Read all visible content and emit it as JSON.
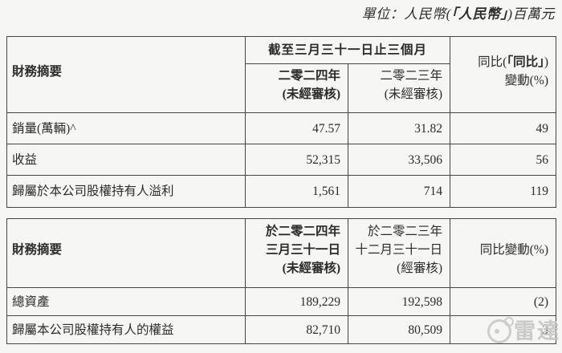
{
  "page": {
    "unit_note": {
      "prefix": "單位：人民幣(",
      "bold": "「人民幣」",
      "suffix": ")百萬元"
    }
  },
  "colors": {
    "background": "#f6f6f4",
    "border": "#454545",
    "text": "#2b2b2b",
    "watermark": "#c6c6c5"
  },
  "table1": {
    "header": {
      "label": "財務摘要",
      "period_span": "截至三月三十一日止三個月",
      "col_2024": {
        "line1": "二零二四年",
        "line2": "(未經審核)"
      },
      "col_2023": {
        "line1": "二零二三年",
        "line2": "(未經審核)"
      },
      "col_yoy": {
        "line1_prefix": "同比(",
        "line1_bold": "「同比」",
        "line1_suffix": ")",
        "line2": "變動(%)"
      }
    },
    "rows": [
      {
        "label": "銷量(萬輛)^",
        "y2024": "47.57",
        "y2023": "31.82",
        "yoy": "49"
      },
      {
        "label": "收益",
        "y2024": "52,315",
        "y2023": "33,506",
        "yoy": "56"
      },
      {
        "label": "歸屬於本公司股權持有人溢利",
        "y2024": "1,561",
        "y2023": "714",
        "yoy": "119"
      }
    ]
  },
  "table2": {
    "header": {
      "label": "財務摘要",
      "col_2024": {
        "line1": "於二零二四年",
        "line2": "三月三十一日",
        "line3": "(未經審核)"
      },
      "col_2023": {
        "line1": "於二零二三年",
        "line2": "十二月三十一日",
        "line3": "(經審核)"
      },
      "col_yoy": "同比變動(%)"
    },
    "rows": [
      {
        "label": "總資產",
        "y2024": "189,229",
        "y2023": "192,598",
        "yoy": "(2)"
      },
      {
        "label": "歸屬本公司股權持有人的權益",
        "y2024": "82,710",
        "y2023": "80,509",
        "yoy": "3"
      }
    ]
  },
  "watermark": {
    "text": "雷達"
  }
}
